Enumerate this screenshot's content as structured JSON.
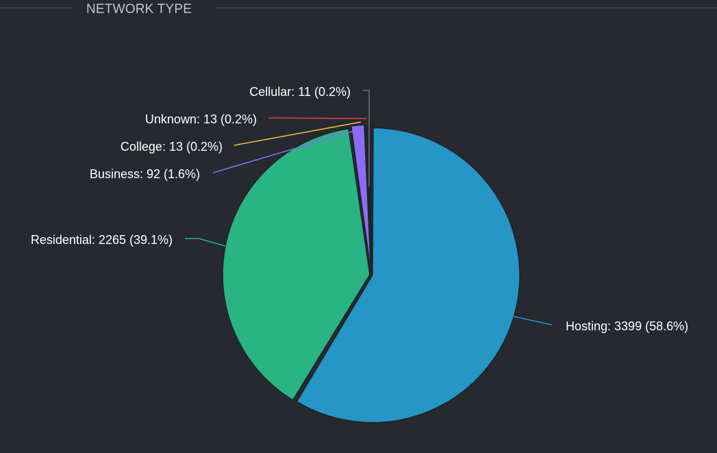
{
  "panel": {
    "title": "NETWORK TYPE"
  },
  "chart_data": {
    "type": "pie",
    "title": "NETWORK TYPE",
    "categories": [
      "Hosting",
      "Residential",
      "Business",
      "College",
      "Unknown",
      "Cellular"
    ],
    "values": [
      3399,
      2265,
      92,
      13,
      13,
      11
    ],
    "percentages": [
      "58.6%",
      "39.1%",
      "1.6%",
      "0.2%",
      "0.2%",
      "0.2%"
    ],
    "colors": [
      "#2696c6",
      "#2ab383",
      "#8c6cf5",
      "#e8c63c",
      "#e34444",
      "#4e5565"
    ],
    "labels": [
      "Hosting: 3399 (58.6%)",
      "Residential: 2265 (39.1%)",
      "Business: 92 (1.6%)",
      "College: 13 (0.2%)",
      "Unknown: 13 (0.2%)",
      "Cellular: 11 (0.2%)"
    ],
    "start_angle": "12 o'clock",
    "direction": "clockwise",
    "legend": "none"
  }
}
